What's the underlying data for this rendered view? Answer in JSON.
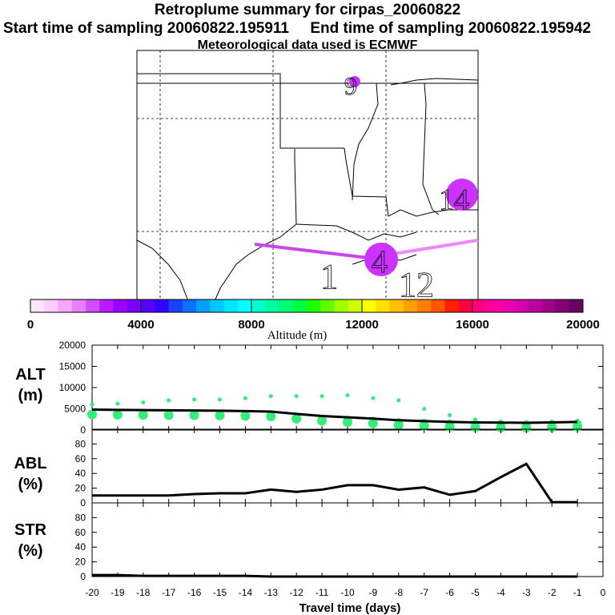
{
  "header": {
    "title": "Retroplume summary for cirpas_20060822",
    "sampling_line": "Start time of sampling 20060822.195911     End time of sampling 20060822.195942",
    "met_line": "Meteorological data used is ECMWF"
  },
  "map": {
    "markers": [
      {
        "label": "9",
        "color": "#cc33ff"
      },
      {
        "label": "1",
        "color": "#cc33ff"
      },
      {
        "label": "12",
        "color": "#cc33ff"
      },
      {
        "label": "14",
        "color": "#cc33ff"
      }
    ],
    "plume_colors": [
      "#cc44ee",
      "#ee88ff"
    ]
  },
  "colorbar": {
    "title": "Altitude (m)",
    "ticks": [
      "0",
      "4000",
      "8000",
      "12000",
      "16000",
      "20000"
    ],
    "colors": [
      "#ffe6ff",
      "#ffccff",
      "#f5a6ff",
      "#e580ff",
      "#d24dff",
      "#bb1aff",
      "#9900ff",
      "#7a00ff",
      "#5a00ff",
      "#3300ff",
      "#1a40ff",
      "#0a70ff",
      "#00a0ff",
      "#00c8ff",
      "#00e6ff",
      "#00ffff",
      "#00ffd0",
      "#00ffa0",
      "#00ff70",
      "#00ff40",
      "#20ff00",
      "#60ff00",
      "#a0ff00",
      "#d0ff00",
      "#ffff00",
      "#ffe000",
      "#ffc000",
      "#ffa000",
      "#ff7f00",
      "#ff5500",
      "#ff2000",
      "#ff0040",
      "#ff0080",
      "#ff00a0",
      "#ee00b0",
      "#d600b0",
      "#bb009f",
      "#a0008a",
      "#850075",
      "#6a0060"
    ]
  },
  "chart_data": [
    {
      "type": "line",
      "panel": "ALT",
      "ylabel": "ALT\n(m)",
      "ylabel_lines": [
        "ALT",
        "(m)"
      ],
      "ylim": [
        0,
        20000
      ],
      "yticks": [
        "0",
        "5000",
        "10000",
        "15000",
        "20000"
      ],
      "x": [
        -20,
        -19,
        -18,
        -17,
        -16,
        -15,
        -14,
        -13,
        -12,
        -11,
        -10,
        -9,
        -8,
        -7,
        -6,
        -5,
        -4,
        -3,
        -2,
        -1
      ],
      "series": [
        {
          "name": "mean altitude",
          "values": [
            4800,
            4750,
            4700,
            4650,
            4600,
            4550,
            4450,
            4350,
            3800,
            3300,
            3000,
            2700,
            2300,
            2100,
            1900,
            1800,
            1750,
            1700,
            1800,
            1900
          ]
        },
        {
          "name": "upper scatter",
          "values": [
            6000,
            6200,
            6500,
            7000,
            7200,
            7200,
            7500,
            8000,
            8000,
            8000,
            8200,
            7500,
            7000,
            5000,
            3500,
            2500,
            2000,
            1800,
            2000,
            2200
          ]
        }
      ]
    },
    {
      "type": "line",
      "panel": "ABL",
      "ylabel_lines": [
        "ABL",
        "(%)"
      ],
      "ylim": [
        0,
        100
      ],
      "yticks": [
        "0",
        "20",
        "40",
        "60",
        "80"
      ],
      "x": [
        -20,
        -19,
        -18,
        -17,
        -16,
        -15,
        -14,
        -13,
        -12,
        -11,
        -10,
        -9,
        -8,
        -7,
        -6,
        -5,
        -4,
        -3,
        -2,
        -1
      ],
      "values": [
        10,
        10,
        10,
        10,
        12,
        13,
        13,
        18,
        15,
        18,
        24,
        24,
        18,
        21,
        11,
        16,
        35,
        53,
        1,
        1
      ]
    },
    {
      "type": "line",
      "panel": "STR",
      "ylabel_lines": [
        "STR",
        "(%)"
      ],
      "ylim": [
        0,
        100
      ],
      "yticks": [
        "0",
        "20",
        "40",
        "60",
        "80"
      ],
      "x": [
        -20,
        -19,
        -18,
        -17,
        -16,
        -15,
        -14,
        -13,
        -12,
        -11,
        -10,
        -9,
        -8,
        -7,
        -6,
        -5,
        -4,
        -3,
        -2,
        -1
      ],
      "values": [
        2,
        2,
        1,
        1,
        1,
        1,
        1,
        0,
        0,
        0,
        0,
        0,
        0,
        0,
        0,
        0,
        0,
        0,
        0,
        0
      ]
    }
  ],
  "xaxis": {
    "label": "Travel time (days)",
    "ticks": [
      "-20",
      "-19",
      "-18",
      "-17",
      "-16",
      "-15",
      "-14",
      "-13",
      "-12",
      "-11",
      "-10",
      "-9",
      "-8",
      "-7",
      "-6",
      "-5",
      "-4",
      "-3",
      "-2",
      "-1",
      "0"
    ]
  }
}
